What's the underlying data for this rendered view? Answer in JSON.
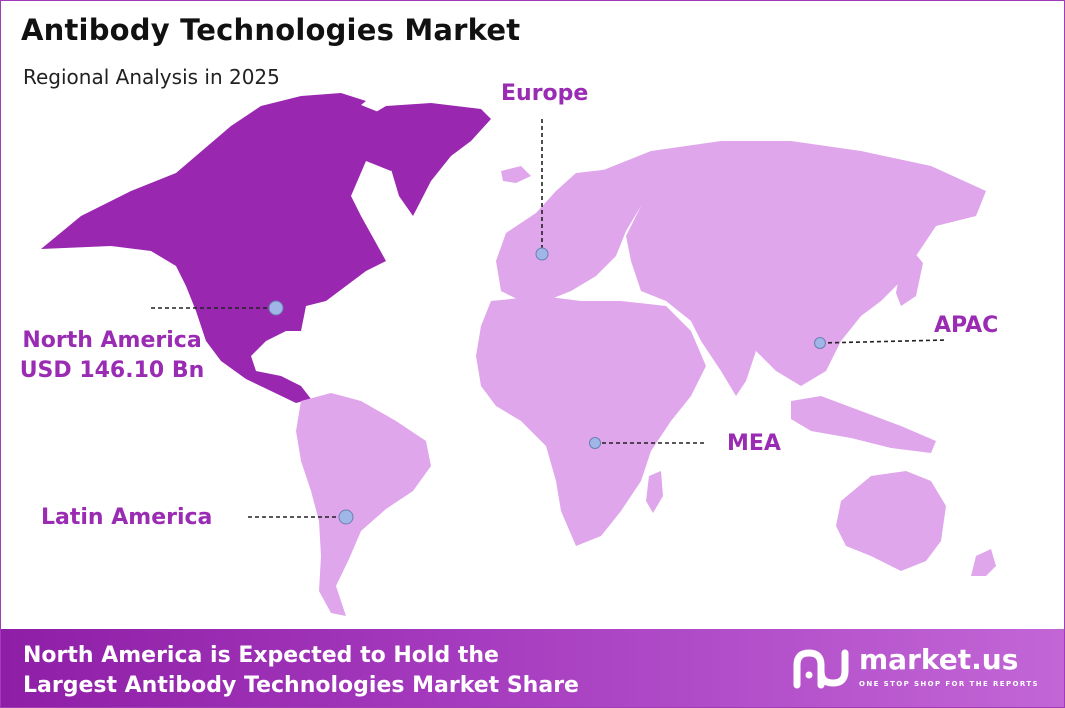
{
  "title": "Antibody Technologies Market",
  "subtitle": "Regional Analysis in 2025",
  "regions": {
    "north_america": {
      "name": "North America",
      "value": "USD 146.10 Bn"
    },
    "europe": {
      "name": "Europe"
    },
    "apac": {
      "name": "APAC"
    },
    "mea": {
      "name": "MEA"
    },
    "latin_america": {
      "name": "Latin America"
    }
  },
  "colors": {
    "highlight": "#9a27b0",
    "land": "#e0a6ec",
    "accent_text": "#9a2bb3",
    "marker": "#9fb6e6"
  },
  "footer": {
    "line1": "North America is Expected to Hold the",
    "line2": "Largest Antibody Technologies Market Share",
    "brand": "market.us",
    "tagline": "ONE STOP SHOP FOR THE REPORTS",
    "logo_icon": "market-us-logo-icon"
  }
}
